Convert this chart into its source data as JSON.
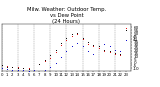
{
  "title": "Milw. Weather: Outdoor Temp.\nvs Dew Point\n(24 Hours)",
  "title_fontsize": 3.8,
  "background_color": "#ffffff",
  "grid_color": "#888888",
  "xlim": [
    0,
    24
  ],
  "ylim": [
    -15,
    65
  ],
  "ytick_vals": [
    -10,
    -5,
    0,
    5,
    10,
    15,
    20,
    25,
    30,
    35,
    40,
    45,
    50,
    55,
    60
  ],
  "ytick_fontsize": 3.0,
  "xtick_fontsize": 2.8,
  "xticks": [
    0,
    1,
    2,
    3,
    4,
    5,
    6,
    7,
    8,
    9,
    10,
    11,
    12,
    13,
    14,
    15,
    16,
    17,
    18,
    19,
    20,
    21,
    22,
    23
  ],
  "temp_color": "#dd0000",
  "dew_color": "#0000cc",
  "high_color": "#000000",
  "temp_x": [
    0,
    1,
    2,
    3,
    4,
    5,
    7,
    8,
    9,
    10,
    11,
    12,
    13,
    14,
    15,
    16,
    17,
    18,
    19,
    20,
    21,
    22,
    23
  ],
  "temp_y": [
    -5,
    -6,
    -7,
    -8,
    -9,
    -10,
    -3,
    2,
    8,
    18,
    30,
    38,
    45,
    48,
    40,
    32,
    28,
    25,
    20,
    18,
    15,
    12,
    58
  ],
  "dew_x": [
    0,
    1,
    2,
    3,
    4,
    5,
    6,
    8,
    9,
    10,
    11,
    12,
    13,
    14,
    15,
    16,
    17,
    18,
    19,
    20,
    21,
    22,
    23
  ],
  "dew_y": [
    -10,
    -11,
    -12,
    -13,
    -13,
    -14,
    -13,
    -12,
    -8,
    0,
    10,
    20,
    28,
    34,
    28,
    20,
    15,
    28,
    32,
    28,
    22,
    20,
    38
  ],
  "high_x": [
    0,
    1,
    2,
    3,
    4,
    5,
    7,
    8,
    9,
    10,
    11,
    12,
    13,
    14,
    15,
    16,
    17,
    18,
    19,
    20,
    21,
    22,
    23
  ],
  "high_y": [
    -5,
    -7,
    -8,
    -9,
    -10,
    -11,
    -2,
    5,
    12,
    22,
    34,
    42,
    48,
    50,
    42,
    35,
    30,
    28,
    22,
    20,
    17,
    14,
    55
  ],
  "vgrid_xticks": [
    0,
    3,
    6,
    9,
    12,
    15,
    18,
    21,
    24
  ]
}
